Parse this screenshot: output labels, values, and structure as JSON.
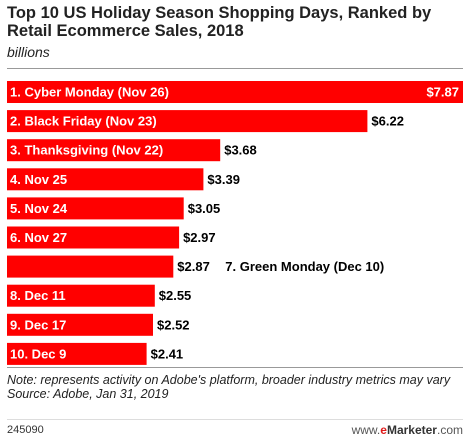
{
  "header": {
    "title": "Top 10 US Holiday Season Shopping Days, Ranked by Retail Ecommerce Sales, 2018",
    "subtitle": "billions"
  },
  "chart_data": {
    "type": "bar",
    "orientation": "horizontal",
    "title": "Top 10 US Holiday Season Shopping Days, Ranked by Retail Ecommerce Sales, 2018",
    "subtitle": "billions",
    "xlim": [
      0,
      7.87
    ],
    "grid": false,
    "legend": "none",
    "bar_color": "#ff0000",
    "categories": [
      "1. Cyber Monday (Nov 26)",
      "2. Black Friday (Nov 23)",
      "3. Thanksgiving (Nov 22)",
      "4. Nov 25",
      "5. Nov 24",
      "6. Nov 27",
      "7. Green Monday (Dec 10)",
      "8. Dec 11",
      "9. Dec 17",
      "10. Dec 9"
    ],
    "values": [
      7.87,
      6.22,
      3.68,
      3.39,
      3.05,
      2.97,
      2.87,
      2.55,
      2.52,
      2.41
    ],
    "value_labels": [
      "$7.87",
      "$6.22",
      "$3.68",
      "$3.39",
      "$3.05",
      "$2.97",
      "$2.87",
      "$2.55",
      "$2.52",
      "$2.41"
    ]
  },
  "footer": {
    "note": "Note: represents activity on Adobe's platform, broader industry metrics may vary",
    "source": "Source: Adobe, Jan 31, 2019",
    "chart_id": "245090",
    "brand_prefix": "www.",
    "brand_e": "e",
    "brand_name": "Marketer",
    "brand_suffix": ".com"
  }
}
